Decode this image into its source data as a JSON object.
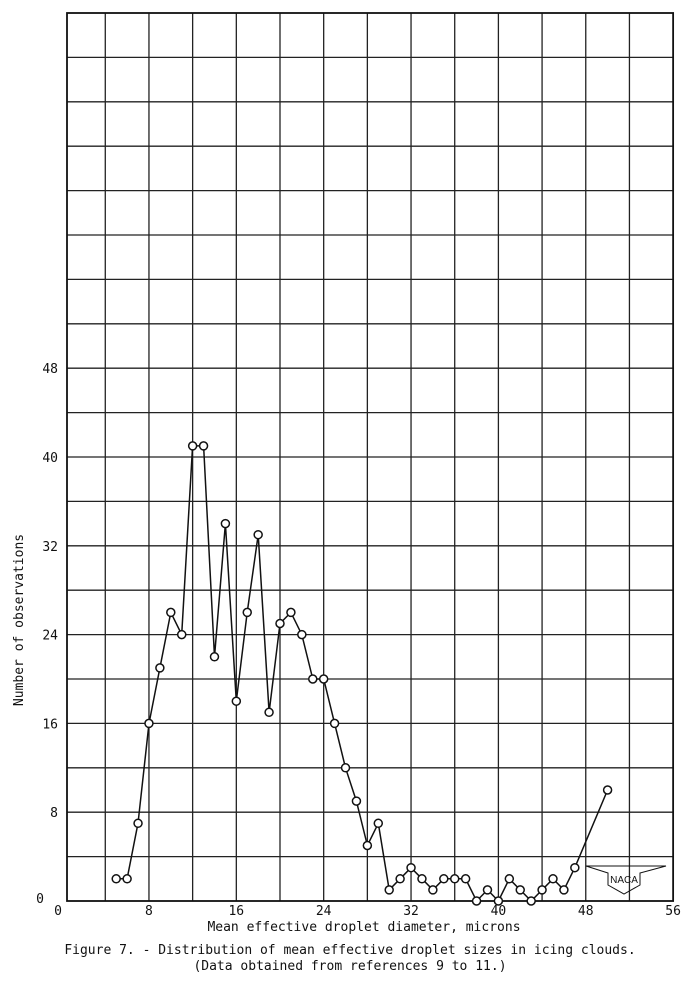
{
  "chart_data": {
    "type": "line",
    "title": "",
    "xlabel": "Mean effective droplet diameter, microns",
    "ylabel": "Number of observations",
    "xlim": [
      0,
      56
    ],
    "ylim": [
      0,
      80
    ],
    "x_ticks": [
      0,
      8,
      16,
      24,
      32,
      40,
      48,
      56
    ],
    "y_ticks": [
      0,
      8,
      16,
      24,
      32,
      40,
      48
    ],
    "grid": true,
    "grid_step": {
      "x": 4,
      "y": 4
    },
    "marker": "open-circle",
    "line_color": "#111111",
    "x": [
      5,
      6,
      7,
      8,
      9,
      10,
      11,
      12,
      13,
      14,
      15,
      16,
      17,
      18,
      19,
      20,
      21,
      22,
      23,
      24,
      25,
      26,
      27,
      28,
      29,
      30,
      31,
      32,
      33,
      34,
      35,
      36,
      37,
      38,
      39,
      40,
      41,
      42,
      43,
      44,
      45,
      46,
      47,
      50
    ],
    "y": [
      2,
      2,
      7,
      16,
      21,
      26,
      24,
      41,
      41,
      22,
      34,
      18,
      26,
      33,
      17,
      25,
      26,
      24,
      20,
      20,
      16,
      12,
      9,
      5,
      7,
      1,
      2,
      3,
      2,
      1,
      2,
      2,
      2,
      0,
      1,
      0,
      2,
      1,
      0,
      1,
      2,
      1,
      3,
      10
    ]
  },
  "caption": {
    "line1": "Figure 7. - Distribution of mean effective droplet sizes in icing clouds.",
    "line2": "(Data obtained from references 9 to 11.)"
  },
  "logo": {
    "text": "NACA"
  }
}
